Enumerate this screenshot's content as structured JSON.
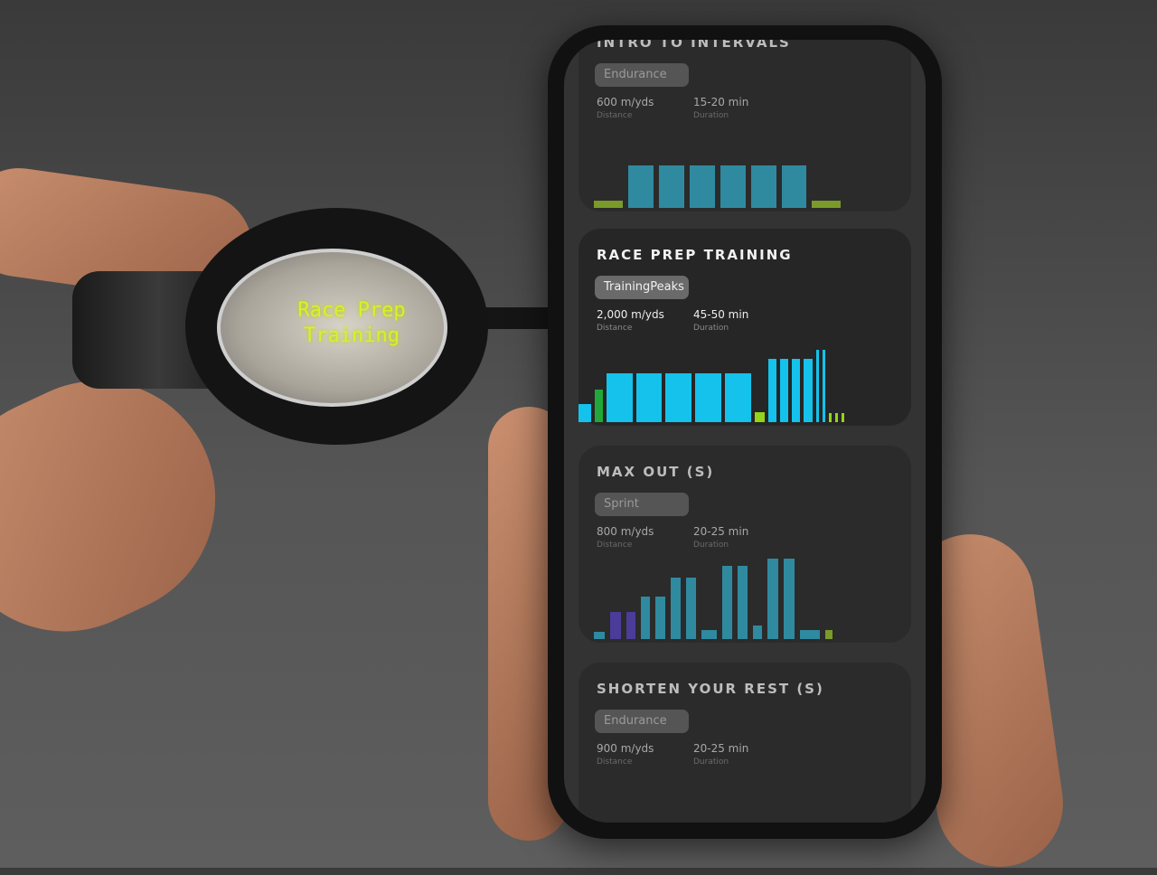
{
  "goggle_display": {
    "line1": "Race Prep",
    "line2": "Training",
    "text_color": "#d9f02a"
  },
  "zones": {
    "warmup": "#7a9a2a",
    "endurance": "#2f8aa0",
    "threshold": "#14c2ec",
    "recovery": "#94d41a",
    "easy": "#22a83a",
    "sprint": "#4b3c9a"
  },
  "cards": [
    {
      "title": "INTRO TO INTERVALS",
      "tag": "Endurance",
      "distance": "600 m/yds",
      "distance_label": "Distance",
      "duration": "15-20 min",
      "duration_label": "Duration",
      "active": false,
      "bars": [
        [
          36,
          0.17,
          "warmup"
        ],
        [
          32,
          1,
          "endurance"
        ],
        [
          32,
          1,
          "endurance"
        ],
        [
          32,
          1,
          "endurance"
        ],
        [
          32,
          1,
          "endurance"
        ],
        [
          32,
          1,
          "endurance"
        ],
        [
          31,
          1,
          "endurance"
        ],
        [
          36,
          0.17,
          "warmup"
        ]
      ]
    },
    {
      "title": "RACE PREP TRAINING",
      "tag": "TrainingPeaks",
      "distance": "2,000 m/yds",
      "distance_label": "Distance",
      "duration": "45-50 min",
      "duration_label": "Duration",
      "active": true,
      "bars": [
        [
          18,
          0.25,
          "threshold"
        ],
        [
          13,
          0.45,
          "easy"
        ],
        [
          33,
          0.67,
          "threshold"
        ],
        [
          32,
          0.67,
          "threshold"
        ],
        [
          33,
          0.67,
          "threshold"
        ],
        [
          33,
          0.67,
          "threshold"
        ],
        [
          33,
          0.67,
          "threshold"
        ],
        [
          15,
          0.14,
          "recovery"
        ],
        [
          13,
          0.88,
          "threshold"
        ],
        [
          13,
          0.88,
          "threshold"
        ],
        [
          13,
          0.88,
          "threshold"
        ],
        [
          14,
          0.88,
          "threshold"
        ],
        [
          7,
          1,
          "threshold"
        ],
        [
          7,
          1,
          "threshold"
        ],
        [
          7,
          0.12,
          "recovery"
        ],
        [
          7,
          0.12,
          "recovery"
        ],
        [
          7,
          0.12,
          "recovery"
        ]
      ]
    },
    {
      "title": "MAX OUT (S)",
      "tag": "Sprint",
      "distance": "800 m/yds",
      "distance_label": "Distance",
      "duration": "20-25 min",
      "duration_label": "Duration",
      "active": false,
      "bars": [
        [
          16,
          0.09,
          "endurance"
        ],
        [
          16,
          0.34,
          "sprint"
        ],
        [
          14,
          0.34,
          "sprint"
        ],
        [
          14,
          0.53,
          "endurance"
        ],
        [
          15,
          0.53,
          "endurance"
        ],
        [
          15,
          0.76,
          "endurance"
        ],
        [
          15,
          0.76,
          "endurance"
        ],
        [
          21,
          0.11,
          "endurance"
        ],
        [
          15,
          0.91,
          "endurance"
        ],
        [
          15,
          0.91,
          "endurance"
        ],
        [
          14,
          0.17,
          "endurance"
        ],
        [
          16,
          1,
          "endurance"
        ],
        [
          16,
          1,
          "endurance"
        ],
        [
          26,
          0.11,
          "endurance"
        ],
        [
          12,
          0.11,
          "warmup"
        ]
      ]
    },
    {
      "title": "SHORTEN YOUR REST (S)",
      "tag": "Endurance",
      "distance": "900 m/yds",
      "distance_label": "Distance",
      "duration": "20-25 min",
      "duration_label": "Duration",
      "active": false,
      "bars": []
    }
  ]
}
